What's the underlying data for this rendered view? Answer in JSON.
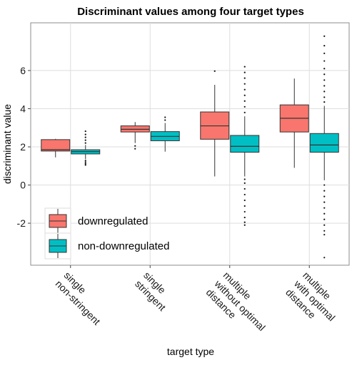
{
  "chart_data": {
    "type": "boxplot",
    "title": "Discriminant values among four target types",
    "xlabel": "target type",
    "ylabel": "discriminant value",
    "ylim": [
      -4.2,
      8.5
    ],
    "yticks": [
      -2,
      0,
      2,
      4,
      6
    ],
    "grid": true,
    "legend_position": "bottom-left",
    "categories": [
      [
        "single",
        "non-stringent"
      ],
      [
        "single",
        "stringent"
      ],
      [
        "multiple",
        "without optimal",
        "distance"
      ],
      [
        "multiple",
        "with optimal",
        "distance"
      ]
    ],
    "series": [
      {
        "name": "downregulated",
        "color": "#F8766D",
        "boxes": [
          {
            "whisker_low": 1.45,
            "q1": 1.78,
            "median": 1.85,
            "q3": 2.38,
            "whisker_high": 2.42,
            "outliers": []
          },
          {
            "whisker_low": 2.2,
            "q1": 2.78,
            "median": 2.92,
            "q3": 3.1,
            "whisker_high": 3.3,
            "outliers": [
              1.9,
              2.05
            ]
          },
          {
            "whisker_low": 0.45,
            "q1": 2.4,
            "median": 3.1,
            "q3": 3.83,
            "whisker_high": 5.25,
            "outliers": [
              5.97
            ]
          },
          {
            "whisker_low": 0.9,
            "q1": 2.78,
            "median": 3.5,
            "q3": 4.2,
            "whisker_high": 5.58,
            "outliers": []
          }
        ]
      },
      {
        "name": "non-downregulated",
        "color": "#00BFC4",
        "boxes": [
          {
            "whisker_low": 1.35,
            "q1": 1.63,
            "median": 1.75,
            "q3": 1.85,
            "whisker_high": 2.1,
            "outliers": [
              1.05,
              1.12,
              1.2,
              1.28,
              2.2,
              2.35,
              2.5,
              2.65,
              2.82
            ]
          },
          {
            "whisker_low": 1.75,
            "q1": 2.32,
            "median": 2.55,
            "q3": 2.8,
            "whisker_high": 3.25,
            "outliers": [
              3.4,
              3.55
            ]
          },
          {
            "whisker_low": 0.45,
            "q1": 1.72,
            "median": 2.03,
            "q3": 2.6,
            "whisker_high": 3.6,
            "outliers": [
              -2.1,
              -1.95,
              -1.7,
              -1.4,
              -1.1,
              -0.8,
              -0.5,
              -0.2,
              0.1,
              0.3,
              3.8,
              4.1,
              4.4,
              4.7,
              5.0,
              5.3,
              5.6,
              5.9,
              6.2
            ]
          },
          {
            "whisker_low": 0.25,
            "q1": 1.72,
            "median": 2.1,
            "q3": 2.7,
            "whisker_high": 4.15,
            "outliers": [
              -3.8,
              -2.6,
              -2.4,
              -2.1,
              -1.8,
              -1.5,
              -1.2,
              -0.9,
              -0.6,
              -0.3,
              0.0,
              4.35,
              4.6,
              4.9,
              5.2,
              5.5,
              5.8,
              6.1,
              6.5,
              6.9,
              7.3,
              7.8
            ]
          }
        ]
      }
    ]
  }
}
